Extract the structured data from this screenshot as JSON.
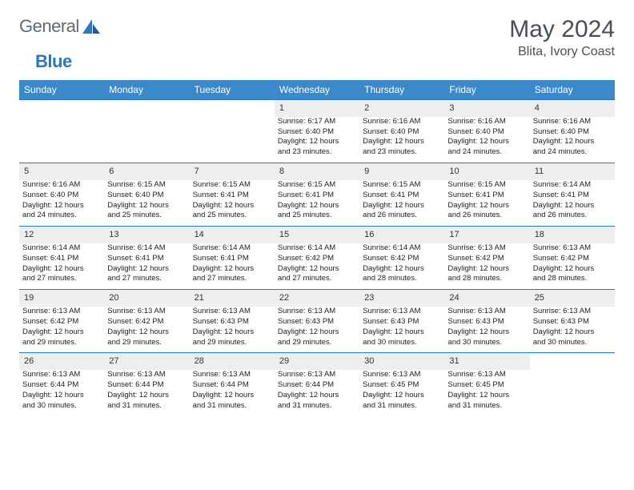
{
  "brand": {
    "part1": "General",
    "part2": "Blue"
  },
  "header": {
    "month": "May 2024",
    "location": "Blita, Ivory Coast"
  },
  "style": {
    "accent": "#3b89c9",
    "accent_border": "#2b77c0",
    "daynum_bg": "#eceef0",
    "text": "#1a1a1a"
  },
  "days": [
    "Sunday",
    "Monday",
    "Tuesday",
    "Wednesday",
    "Thursday",
    "Friday",
    "Saturday"
  ],
  "weeks": [
    {
      "nums": [
        "",
        "",
        "",
        "1",
        "2",
        "3",
        "4"
      ],
      "cells": [
        null,
        null,
        null,
        {
          "sunrise": "Sunrise: 6:17 AM",
          "sunset": "Sunset: 6:40 PM",
          "day1": "Daylight: 12 hours",
          "day2": "and 23 minutes."
        },
        {
          "sunrise": "Sunrise: 6:16 AM",
          "sunset": "Sunset: 6:40 PM",
          "day1": "Daylight: 12 hours",
          "day2": "and 23 minutes."
        },
        {
          "sunrise": "Sunrise: 6:16 AM",
          "sunset": "Sunset: 6:40 PM",
          "day1": "Daylight: 12 hours",
          "day2": "and 24 minutes."
        },
        {
          "sunrise": "Sunrise: 6:16 AM",
          "sunset": "Sunset: 6:40 PM",
          "day1": "Daylight: 12 hours",
          "day2": "and 24 minutes."
        }
      ]
    },
    {
      "nums": [
        "5",
        "6",
        "7",
        "8",
        "9",
        "10",
        "11"
      ],
      "cells": [
        {
          "sunrise": "Sunrise: 6:16 AM",
          "sunset": "Sunset: 6:40 PM",
          "day1": "Daylight: 12 hours",
          "day2": "and 24 minutes."
        },
        {
          "sunrise": "Sunrise: 6:15 AM",
          "sunset": "Sunset: 6:40 PM",
          "day1": "Daylight: 12 hours",
          "day2": "and 25 minutes."
        },
        {
          "sunrise": "Sunrise: 6:15 AM",
          "sunset": "Sunset: 6:41 PM",
          "day1": "Daylight: 12 hours",
          "day2": "and 25 minutes."
        },
        {
          "sunrise": "Sunrise: 6:15 AM",
          "sunset": "Sunset: 6:41 PM",
          "day1": "Daylight: 12 hours",
          "day2": "and 25 minutes."
        },
        {
          "sunrise": "Sunrise: 6:15 AM",
          "sunset": "Sunset: 6:41 PM",
          "day1": "Daylight: 12 hours",
          "day2": "and 26 minutes."
        },
        {
          "sunrise": "Sunrise: 6:15 AM",
          "sunset": "Sunset: 6:41 PM",
          "day1": "Daylight: 12 hours",
          "day2": "and 26 minutes."
        },
        {
          "sunrise": "Sunrise: 6:14 AM",
          "sunset": "Sunset: 6:41 PM",
          "day1": "Daylight: 12 hours",
          "day2": "and 26 minutes."
        }
      ]
    },
    {
      "nums": [
        "12",
        "13",
        "14",
        "15",
        "16",
        "17",
        "18"
      ],
      "cells": [
        {
          "sunrise": "Sunrise: 6:14 AM",
          "sunset": "Sunset: 6:41 PM",
          "day1": "Daylight: 12 hours",
          "day2": "and 27 minutes."
        },
        {
          "sunrise": "Sunrise: 6:14 AM",
          "sunset": "Sunset: 6:41 PM",
          "day1": "Daylight: 12 hours",
          "day2": "and 27 minutes."
        },
        {
          "sunrise": "Sunrise: 6:14 AM",
          "sunset": "Sunset: 6:41 PM",
          "day1": "Daylight: 12 hours",
          "day2": "and 27 minutes."
        },
        {
          "sunrise": "Sunrise: 6:14 AM",
          "sunset": "Sunset: 6:42 PM",
          "day1": "Daylight: 12 hours",
          "day2": "and 27 minutes."
        },
        {
          "sunrise": "Sunrise: 6:14 AM",
          "sunset": "Sunset: 6:42 PM",
          "day1": "Daylight: 12 hours",
          "day2": "and 28 minutes."
        },
        {
          "sunrise": "Sunrise: 6:13 AM",
          "sunset": "Sunset: 6:42 PM",
          "day1": "Daylight: 12 hours",
          "day2": "and 28 minutes."
        },
        {
          "sunrise": "Sunrise: 6:13 AM",
          "sunset": "Sunset: 6:42 PM",
          "day1": "Daylight: 12 hours",
          "day2": "and 28 minutes."
        }
      ]
    },
    {
      "nums": [
        "19",
        "20",
        "21",
        "22",
        "23",
        "24",
        "25"
      ],
      "cells": [
        {
          "sunrise": "Sunrise: 6:13 AM",
          "sunset": "Sunset: 6:42 PM",
          "day1": "Daylight: 12 hours",
          "day2": "and 29 minutes."
        },
        {
          "sunrise": "Sunrise: 6:13 AM",
          "sunset": "Sunset: 6:42 PM",
          "day1": "Daylight: 12 hours",
          "day2": "and 29 minutes."
        },
        {
          "sunrise": "Sunrise: 6:13 AM",
          "sunset": "Sunset: 6:43 PM",
          "day1": "Daylight: 12 hours",
          "day2": "and 29 minutes."
        },
        {
          "sunrise": "Sunrise: 6:13 AM",
          "sunset": "Sunset: 6:43 PM",
          "day1": "Daylight: 12 hours",
          "day2": "and 29 minutes."
        },
        {
          "sunrise": "Sunrise: 6:13 AM",
          "sunset": "Sunset: 6:43 PM",
          "day1": "Daylight: 12 hours",
          "day2": "and 30 minutes."
        },
        {
          "sunrise": "Sunrise: 6:13 AM",
          "sunset": "Sunset: 6:43 PM",
          "day1": "Daylight: 12 hours",
          "day2": "and 30 minutes."
        },
        {
          "sunrise": "Sunrise: 6:13 AM",
          "sunset": "Sunset: 6:43 PM",
          "day1": "Daylight: 12 hours",
          "day2": "and 30 minutes."
        }
      ]
    },
    {
      "nums": [
        "26",
        "27",
        "28",
        "29",
        "30",
        "31",
        ""
      ],
      "cells": [
        {
          "sunrise": "Sunrise: 6:13 AM",
          "sunset": "Sunset: 6:44 PM",
          "day1": "Daylight: 12 hours",
          "day2": "and 30 minutes."
        },
        {
          "sunrise": "Sunrise: 6:13 AM",
          "sunset": "Sunset: 6:44 PM",
          "day1": "Daylight: 12 hours",
          "day2": "and 31 minutes."
        },
        {
          "sunrise": "Sunrise: 6:13 AM",
          "sunset": "Sunset: 6:44 PM",
          "day1": "Daylight: 12 hours",
          "day2": "and 31 minutes."
        },
        {
          "sunrise": "Sunrise: 6:13 AM",
          "sunset": "Sunset: 6:44 PM",
          "day1": "Daylight: 12 hours",
          "day2": "and 31 minutes."
        },
        {
          "sunrise": "Sunrise: 6:13 AM",
          "sunset": "Sunset: 6:45 PM",
          "day1": "Daylight: 12 hours",
          "day2": "and 31 minutes."
        },
        {
          "sunrise": "Sunrise: 6:13 AM",
          "sunset": "Sunset: 6:45 PM",
          "day1": "Daylight: 12 hours",
          "day2": "and 31 minutes."
        },
        null
      ]
    }
  ]
}
